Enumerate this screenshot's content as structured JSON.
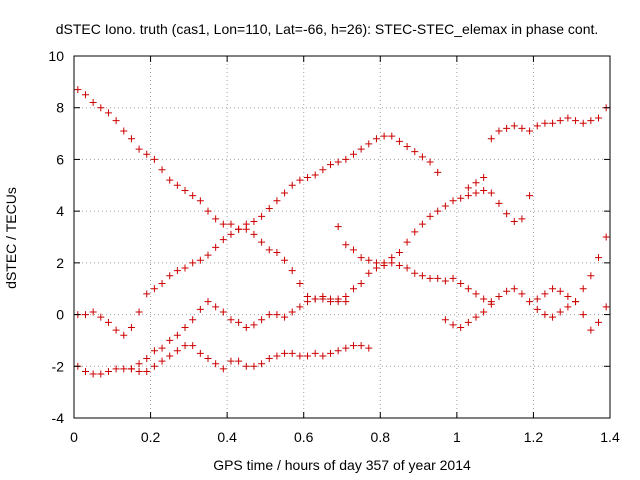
{
  "chart_data": {
    "type": "scatter",
    "title": "dSTEC Iono. truth (cas1, Lon=110, Lat=-66, h=26): STEC-STEC_elemax in phase cont.",
    "xlabel": "GPS time / hours of day 357 of year 2014",
    "ylabel": "dSTEC  / TECUs",
    "xlim": [
      0,
      1.4
    ],
    "ylim": [
      -4,
      10
    ],
    "xticks": [
      0,
      0.2,
      0.4,
      0.6,
      0.8,
      1,
      1.2,
      1.4
    ],
    "xtick_labels": [
      "0",
      "0.2",
      "0.4",
      "0.6",
      "0.8",
      "1",
      "1.2",
      "1.4"
    ],
    "yticks": [
      -4,
      -2,
      0,
      2,
      4,
      6,
      8,
      10
    ],
    "ytick_labels": [
      "-4",
      "-2",
      "0",
      "2",
      "4",
      "6",
      "8",
      "10"
    ],
    "grid": true,
    "marker": "+",
    "color": "#cc0000",
    "series": [
      {
        "x": [
          0.01,
          0.03,
          0.05,
          0.07,
          0.09,
          0.11,
          0.13,
          0.15,
          0.17,
          0.19,
          0.21,
          0.23,
          0.25,
          0.27,
          0.29,
          0.31,
          0.33,
          0.35,
          0.37,
          0.39,
          0.41,
          0.43,
          0.45,
          0.47,
          0.49,
          0.51,
          0.53,
          0.55,
          0.57,
          0.59,
          0.61,
          0.63,
          0.65,
          0.67,
          0.69,
          0.71,
          0.73,
          0.75,
          0.77,
          0.79,
          0.81,
          0.83,
          0.85,
          0.87,
          0.89,
          0.91,
          0.93,
          0.95,
          0.97,
          0.99,
          1.01,
          1.03,
          1.05,
          1.07,
          1.09
        ],
        "y": [
          8.7,
          8.5,
          8.2,
          8.0,
          7.8,
          7.5,
          7.1,
          6.8,
          6.4,
          6.2,
          6.0,
          5.6,
          5.2,
          5.0,
          4.8,
          4.6,
          4.4,
          4.0,
          3.7,
          3.5,
          3.5,
          3.3,
          3.3,
          3.1,
          2.8,
          2.5,
          2.4,
          2.1,
          1.7,
          1.2,
          0.7,
          0.6,
          0.6,
          0.5,
          0.6,
          0.7,
          1.0,
          1.2,
          1.6,
          1.8,
          1.9,
          2.0,
          1.9,
          1.8,
          1.6,
          1.5,
          1.4,
          1.4,
          1.3,
          1.4,
          1.2,
          1.0,
          0.8,
          0.6,
          0.5
        ]
      },
      {
        "x": [
          0.01,
          0.03,
          0.05,
          0.07,
          0.09,
          0.11,
          0.13,
          0.15,
          0.17,
          0.19,
          0.21,
          0.23,
          0.25,
          0.27,
          0.29,
          0.31,
          0.33,
          0.35,
          0.37,
          0.39,
          0.41,
          0.43,
          0.45,
          0.47,
          0.49,
          0.51,
          0.53,
          0.55,
          0.57,
          0.59,
          0.61,
          0.63,
          0.65,
          0.67,
          0.69,
          0.71,
          0.73,
          0.75,
          0.77,
          0.79,
          0.81,
          0.83,
          0.85,
          0.87,
          0.89,
          0.91,
          0.93,
          0.95
        ],
        "y": [
          0.0,
          0.0,
          0.1,
          -0.1,
          -0.3,
          -0.6,
          -0.8,
          -0.5,
          0.1,
          0.8,
          1.0,
          1.2,
          1.5,
          1.7,
          1.8,
          2.0,
          2.1,
          2.3,
          2.6,
          2.9,
          3.1,
          3.3,
          3.5,
          3.6,
          3.8,
          4.1,
          4.4,
          4.7,
          5.0,
          5.2,
          5.3,
          5.4,
          5.6,
          5.8,
          5.9,
          6.0,
          6.2,
          6.4,
          6.6,
          6.8,
          6.9,
          6.9,
          6.7,
          6.5,
          6.3,
          6.1,
          5.9,
          5.5
        ]
      },
      {
        "x": [
          0.01,
          0.03,
          0.05,
          0.07,
          0.09,
          0.11,
          0.13,
          0.15,
          0.17,
          0.19,
          0.21,
          0.23,
          0.25,
          0.27,
          0.29,
          0.31,
          0.33,
          0.35,
          0.37,
          0.39,
          0.41,
          0.43,
          0.45,
          0.47,
          0.49,
          0.51,
          0.53,
          0.55,
          0.57,
          0.59,
          0.61,
          0.63,
          0.65,
          0.67,
          0.69,
          0.71,
          0.73,
          0.75,
          0.77
        ],
        "y": [
          -2.0,
          -2.2,
          -2.3,
          -2.3,
          -2.2,
          -2.1,
          -2.1,
          -2.1,
          -2.2,
          -2.2,
          -2.0,
          -1.8,
          -1.6,
          -1.4,
          -1.2,
          -1.2,
          -1.5,
          -1.7,
          -1.9,
          -2.1,
          -1.8,
          -1.8,
          -2.0,
          -2.0,
          -1.9,
          -1.7,
          -1.6,
          -1.5,
          -1.5,
          -1.6,
          -1.6,
          -1.5,
          -1.6,
          -1.5,
          -1.4,
          -1.3,
          -1.2,
          -1.2,
          -1.3
        ]
      },
      {
        "x": [
          0.15,
          0.17,
          0.19,
          0.21,
          0.23,
          0.25,
          0.27,
          0.29,
          0.31,
          0.33,
          0.35,
          0.37,
          0.39,
          0.41,
          0.43,
          0.45,
          0.47,
          0.49,
          0.51,
          0.53,
          0.55,
          0.57,
          0.59,
          0.61,
          0.63,
          0.65,
          0.67,
          0.69,
          0.71
        ],
        "y": [
          -2.1,
          -1.9,
          -1.7,
          -1.4,
          -1.3,
          -1.0,
          -0.8,
          -0.5,
          -0.2,
          0.2,
          0.5,
          0.3,
          0.1,
          -0.2,
          -0.3,
          -0.5,
          -0.4,
          -0.2,
          0.0,
          0.0,
          -0.1,
          0.1,
          0.3,
          0.5,
          0.6,
          0.7,
          0.6,
          0.5,
          0.5
        ]
      },
      {
        "x": [
          0.69,
          0.71,
          0.73,
          0.75,
          0.77,
          0.79,
          0.81,
          0.83,
          0.85,
          0.87,
          0.89,
          0.91,
          0.93,
          0.95,
          0.97,
          0.99,
          1.01,
          1.03,
          1.05,
          1.07,
          1.09,
          1.11,
          1.13,
          1.15,
          1.17,
          1.19,
          1.21,
          1.23,
          1.25,
          1.27,
          1.29,
          1.31,
          1.33,
          1.35,
          1.37,
          1.39
        ],
        "y": [
          3.4,
          2.7,
          2.5,
          2.2,
          2.1,
          2.0,
          2.0,
          2.2,
          2.4,
          2.8,
          3.2,
          3.5,
          3.8,
          4.0,
          4.2,
          4.4,
          4.5,
          4.6,
          4.7,
          5.3,
          6.8,
          7.1,
          7.2,
          7.3,
          7.2,
          7.1,
          7.3,
          7.4,
          7.4,
          7.5,
          7.6,
          7.5,
          7.4,
          7.5,
          7.6,
          8.0
        ]
      },
      {
        "x": [
          0.97,
          0.99,
          1.01,
          1.03,
          1.05,
          1.07,
          1.09,
          1.11,
          1.13,
          1.15,
          1.17,
          1.19,
          1.21,
          1.23,
          1.25,
          1.27,
          1.29,
          1.31,
          1.33,
          1.35,
          1.37,
          1.39
        ],
        "y": [
          -0.2,
          -0.4,
          -0.5,
          -0.3,
          -0.1,
          0.1,
          0.4,
          0.7,
          0.9,
          1.0,
          0.8,
          0.5,
          0.2,
          0.0,
          -0.1,
          0.1,
          0.3,
          0.5,
          1.0,
          1.5,
          2.2,
          3.0
        ]
      },
      {
        "x": [
          1.03,
          1.05,
          1.07,
          1.09,
          1.11,
          1.13,
          1.15,
          1.17,
          1.19,
          1.21,
          1.23,
          1.25,
          1.27,
          1.29,
          1.31,
          1.33,
          1.35,
          1.37,
          1.39
        ],
        "y": [
          4.9,
          5.1,
          4.8,
          4.7,
          4.3,
          3.9,
          3.6,
          3.7,
          4.6,
          0.6,
          0.8,
          1.0,
          0.9,
          0.7,
          0.5,
          0.0,
          -0.6,
          -0.3,
          0.3
        ]
      }
    ]
  }
}
